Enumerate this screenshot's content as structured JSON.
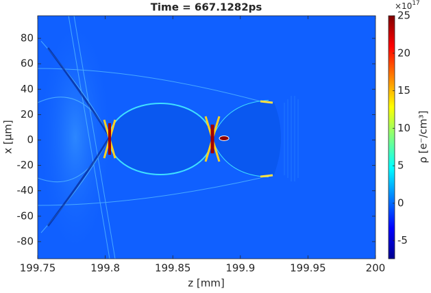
{
  "chart_data": {
    "type": "heatmap",
    "title": "Time = 667.1282ps",
    "xlabel": "z [mm]",
    "ylabel": "x [μm]",
    "xlim": [
      199.75,
      200
    ],
    "xticks": [
      199.75,
      199.8,
      199.85,
      199.9,
      199.95,
      200
    ],
    "ylim": [
      -93.5,
      97.8
    ],
    "yticks": [
      -80,
      -60,
      -40,
      -20,
      0,
      20,
      40,
      60,
      80
    ],
    "colormap": "jet",
    "colorbar": {
      "label": "ρ [e⁻/cm³]",
      "multiplier": "×10",
      "exponent": "17",
      "clim": [
        -7.4,
        25
      ],
      "ticks": [
        -5,
        0,
        5,
        10,
        15,
        20,
        25
      ]
    }
  }
}
